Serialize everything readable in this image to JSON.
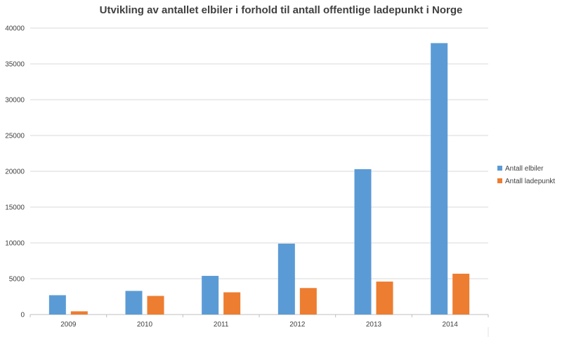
{
  "chart_data": {
    "type": "bar",
    "title": "Utvikling av antallet elbiler i forhold til antall offentlige ladepunkt i Norge",
    "xlabel": "",
    "ylabel": "",
    "categories": [
      "2009",
      "2010",
      "2011",
      "2012",
      "2013",
      "2014"
    ],
    "series": [
      {
        "name": "Antall elbiler",
        "color": "#5b9bd5",
        "values": [
          2700,
          3300,
          5400,
          9900,
          20300,
          37900
        ]
      },
      {
        "name": "Antall ladepunkt",
        "color": "#ed7d31",
        "values": [
          450,
          2600,
          3100,
          3700,
          4600,
          5700
        ]
      }
    ],
    "ylim": [
      0,
      40000
    ],
    "yticks": [
      0,
      5000,
      10000,
      15000,
      20000,
      25000,
      30000,
      35000,
      40000
    ],
    "grid": true,
    "legend": "right"
  }
}
